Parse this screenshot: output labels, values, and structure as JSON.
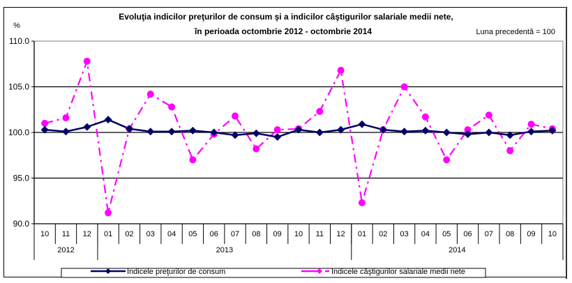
{
  "chart_data": {
    "type": "line",
    "title": "Evoluţia indicilor preţurilor de consum şi a indicilor câştigurilor salariale medii nete,",
    "subtitle": "în perioada octombrie 2012 - octombrie 2014",
    "note": "Luna precedentă = 100",
    "ylabel": "%",
    "xlabel": "",
    "ylim": [
      90,
      110
    ],
    "yticks": [
      "110.0",
      "105.0",
      "100.0",
      "95.0",
      "90.0"
    ],
    "ytick_values": [
      110,
      105,
      100,
      95,
      90
    ],
    "grid": true,
    "categories": [
      "10",
      "11",
      "12",
      "01",
      "02",
      "03",
      "04",
      "05",
      "06",
      "07",
      "08",
      "09",
      "10",
      "11",
      "12",
      "01",
      "02",
      "03",
      "04",
      "05",
      "06",
      "07",
      "08",
      "09",
      "10"
    ],
    "year_groups": [
      {
        "label": "2012",
        "count": 3
      },
      {
        "label": "2013",
        "count": 12
      },
      {
        "label": "2014",
        "count": 10
      }
    ],
    "series": [
      {
        "name": "Indicele preţurilor de consum",
        "color": "#000066",
        "marker": "diamond",
        "line_style": "solid",
        "values": [
          100.3,
          100.1,
          100.6,
          101.4,
          100.4,
          100.1,
          100.1,
          100.2,
          100.0,
          99.7,
          99.9,
          99.5,
          100.3,
          100.0,
          100.3,
          100.9,
          100.3,
          100.1,
          100.2,
          100.0,
          99.8,
          100.0,
          99.7,
          100.1,
          100.2
        ]
      },
      {
        "name": "Indicele câştigurilor salariale medii nete",
        "color": "#ff00ff",
        "marker": "circle",
        "line_style": "dash-dot",
        "values": [
          101.0,
          101.6,
          107.8,
          91.2,
          100.4,
          104.2,
          102.8,
          97.0,
          99.8,
          101.8,
          98.2,
          100.3,
          100.4,
          102.3,
          106.8,
          92.3,
          100.3,
          105.0,
          101.7,
          97.0,
          100.3,
          101.9,
          98.0,
          100.9,
          100.4
        ]
      }
    ],
    "legend": "bottom"
  }
}
